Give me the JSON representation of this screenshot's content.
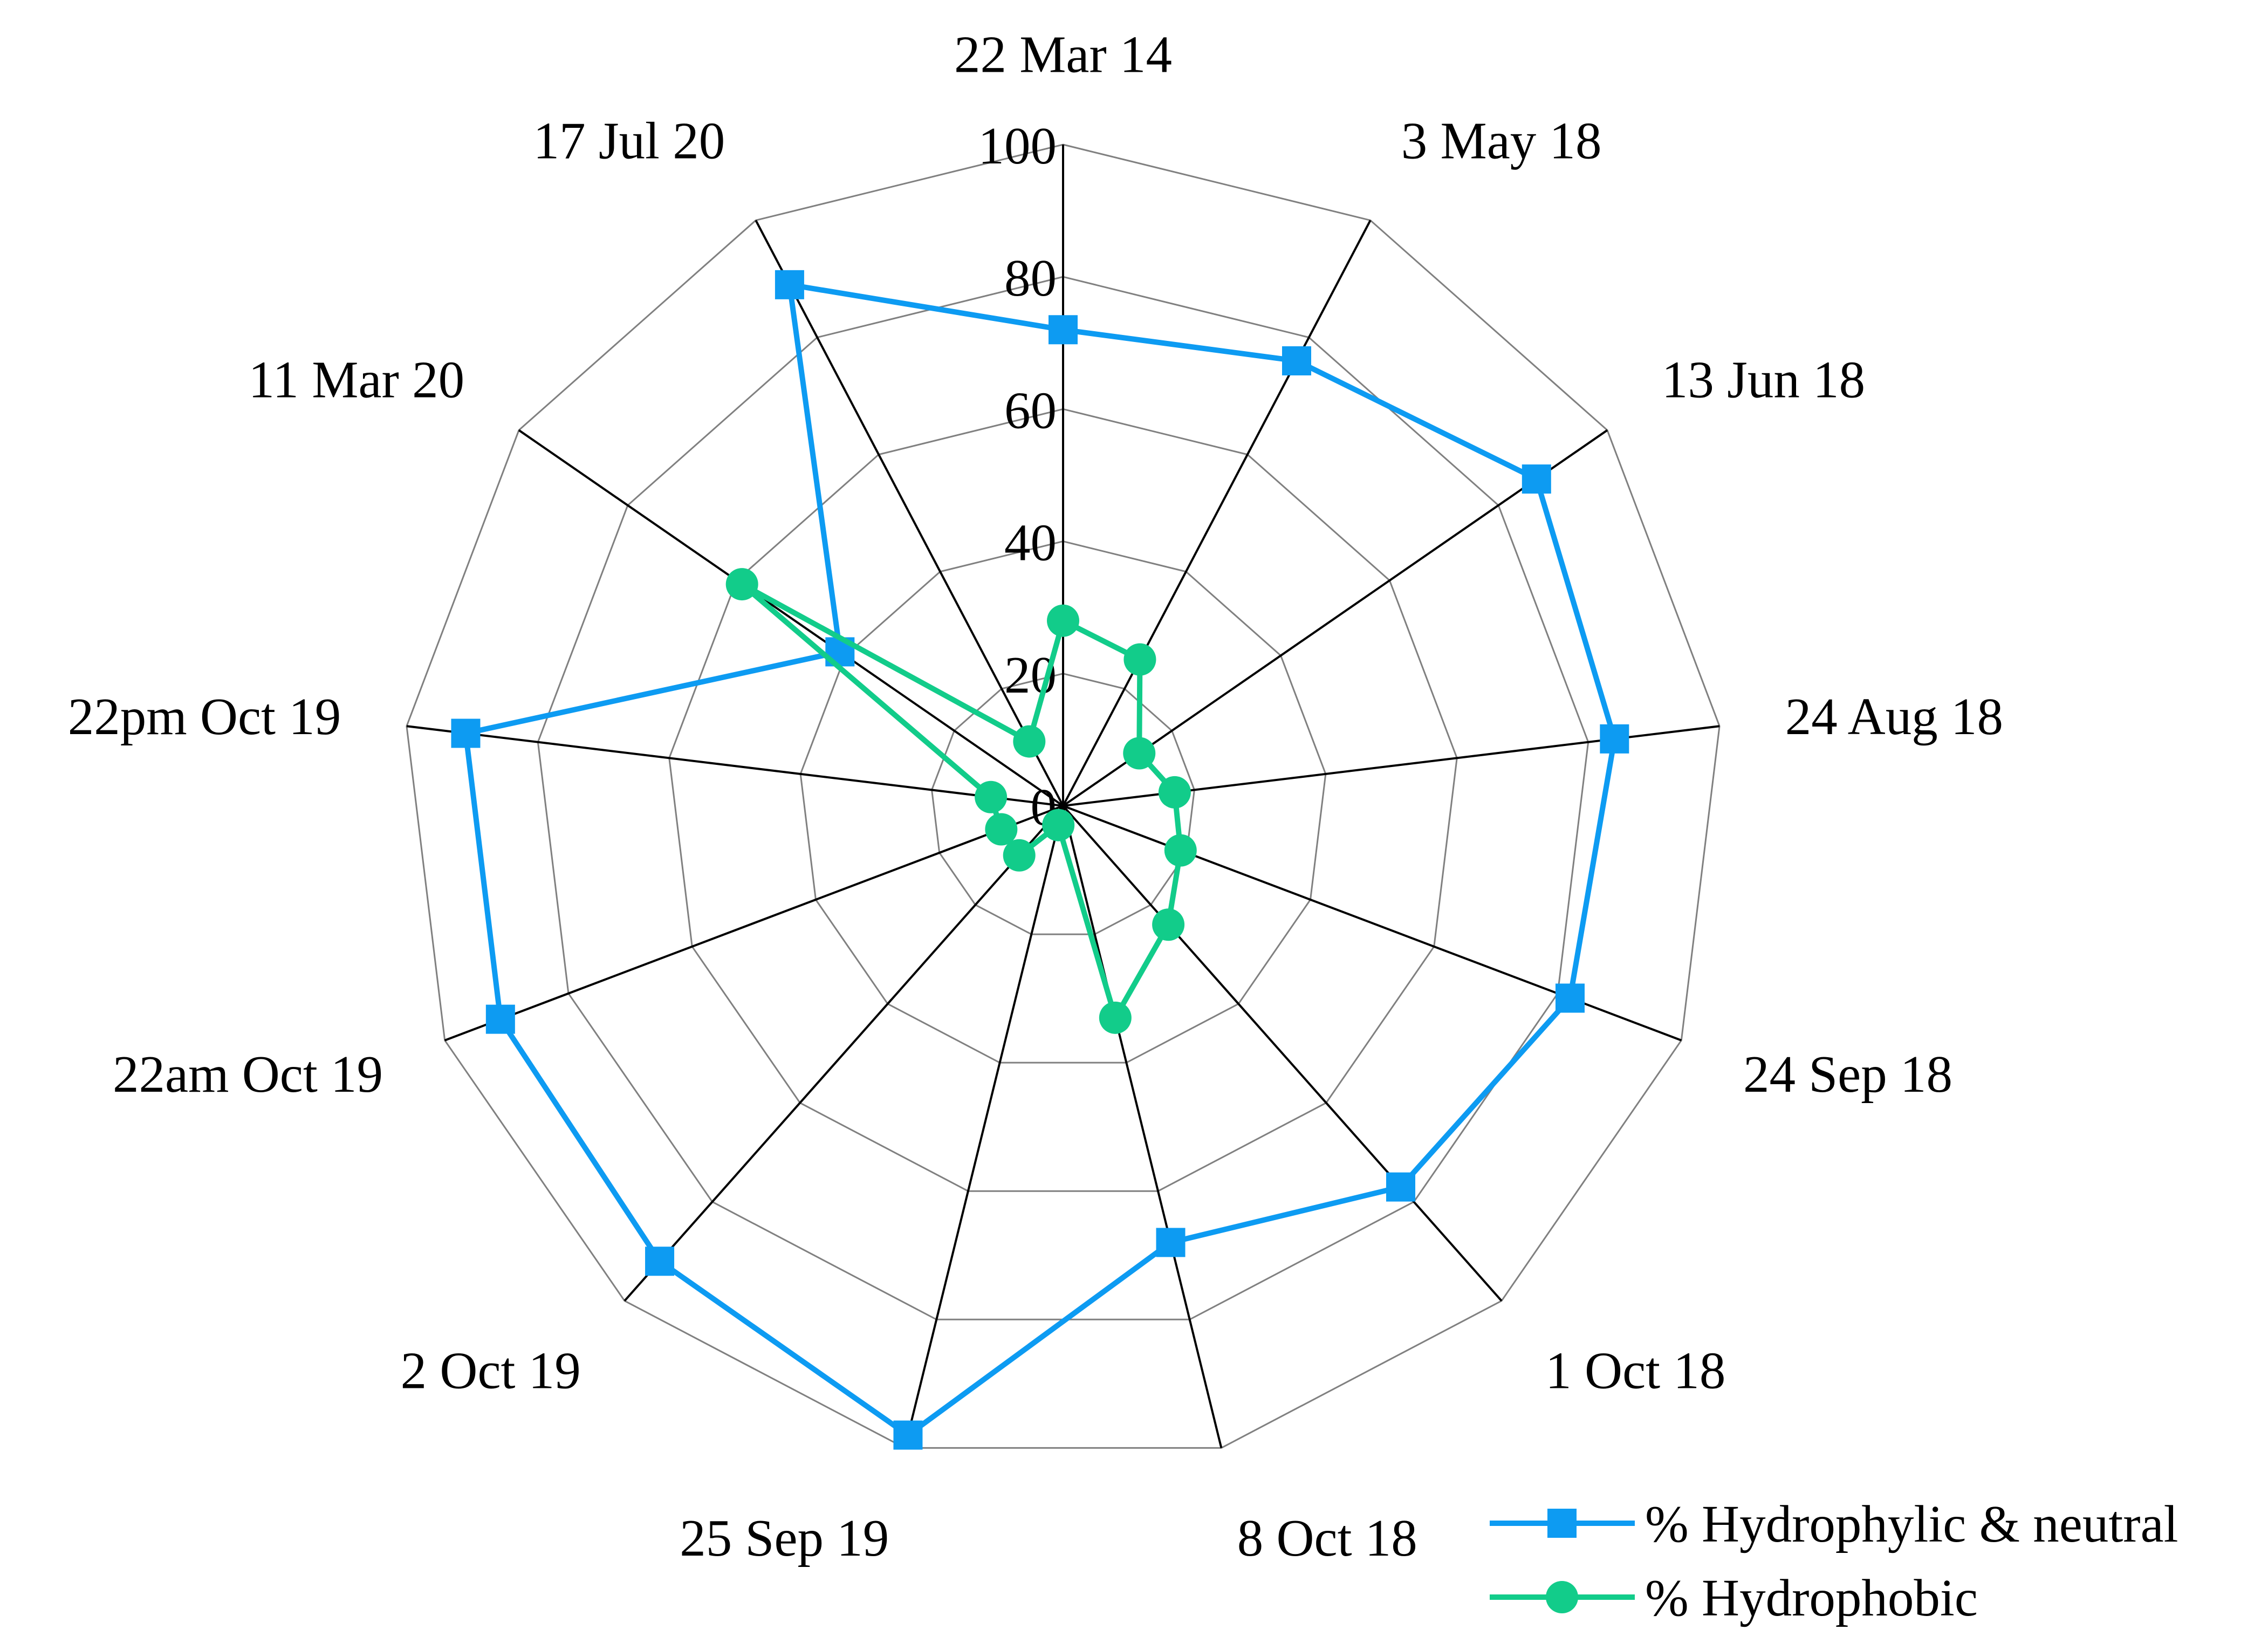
{
  "chart_data": {
    "type": "radar",
    "categories": [
      "22 Mar 14",
      "3 May 18",
      "13 Jun 18",
      "24 Aug 18",
      "24 Sep 18",
      "1 Oct 18",
      "8 Oct 18",
      "25 Sep 19",
      "2 Oct 19",
      "22am Oct 19",
      "22pm Oct 19",
      "11 Mar 20",
      "17 Jul 20"
    ],
    "series": [
      {
        "name": "% Hydrophylic & neutral",
        "color": "#0d9bf2",
        "marker": "square",
        "values": [
          72,
          76,
          87,
          84,
          82,
          77,
          68,
          98,
          92,
          91,
          91,
          41,
          89
        ]
      },
      {
        "name": "% Hydrophobic",
        "color": "#12cc8a",
        "marker": "circle",
        "values": [
          28,
          25,
          14,
          17,
          19,
          24,
          33,
          3,
          10,
          10,
          11,
          59,
          11
        ]
      }
    ],
    "ylim": [
      0,
      100
    ],
    "yticks": [
      0,
      20,
      40,
      60,
      80,
      100
    ],
    "grid": true,
    "legend": "bottom-right"
  }
}
